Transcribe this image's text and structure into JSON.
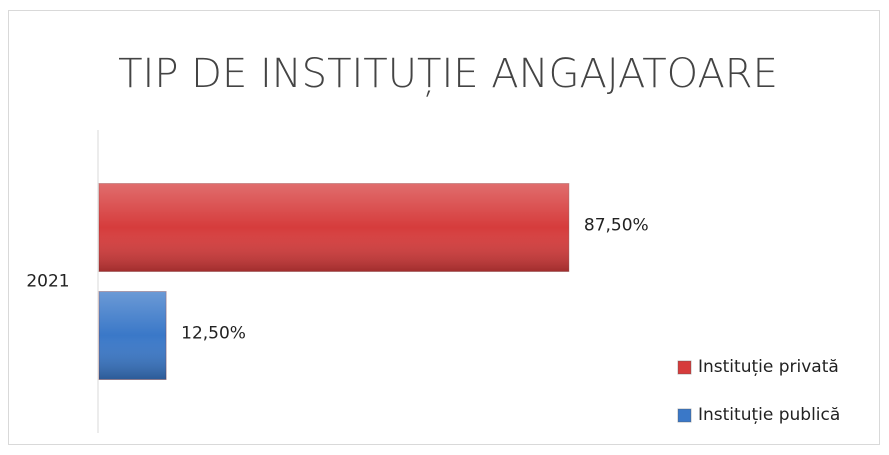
{
  "chart_data": {
    "type": "hbar",
    "title": "TIP DE INSTITUȚIE ANGAJATOARE",
    "categories": [
      "2021"
    ],
    "series": [
      {
        "name": "Instituție privată",
        "color": "#d63c3c",
        "values": [
          87.5
        ],
        "value_labels": [
          "87,50%"
        ]
      },
      {
        "name": "Instituție publică",
        "color": "#3a78c8",
        "values": [
          12.5
        ],
        "value_labels": [
          "12,50%"
        ]
      }
    ],
    "legend": "right"
  }
}
